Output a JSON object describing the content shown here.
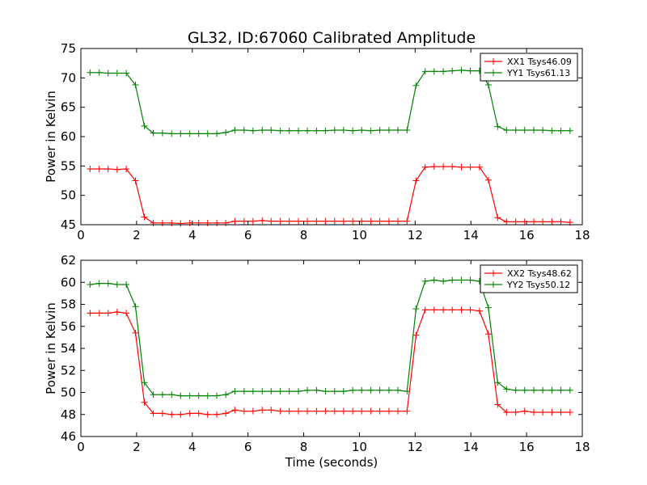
{
  "title": "GL32, ID:67060 Calibrated Amplitude",
  "colors": {
    "red": "#ff0000",
    "green": "#008000"
  },
  "chart_data": [
    {
      "type": "line",
      "xlabel": "",
      "ylabel": "Power in Kelvin",
      "xlim": [
        0,
        18
      ],
      "ylim": [
        45,
        75
      ],
      "xticks": [
        0,
        2,
        4,
        6,
        8,
        10,
        12,
        14,
        16,
        18
      ],
      "yticks": [
        45,
        50,
        55,
        60,
        65,
        70,
        75
      ],
      "grid": false,
      "legend_position": "top-right",
      "x": [
        0.33,
        0.66,
        0.98,
        1.3,
        1.63,
        1.96,
        2.28,
        2.6,
        2.93,
        3.26,
        3.58,
        3.91,
        4.23,
        4.55,
        4.88,
        5.2,
        5.53,
        5.86,
        6.18,
        6.51,
        6.83,
        7.16,
        7.48,
        7.81,
        8.13,
        8.46,
        8.78,
        9.11,
        9.43,
        9.76,
        10.08,
        10.41,
        10.73,
        11.06,
        11.38,
        11.71,
        12.03,
        12.36,
        12.68,
        13.01,
        13.33,
        13.66,
        13.98,
        14.31,
        14.63,
        14.96,
        15.28,
        15.61,
        15.93,
        16.26,
        16.58,
        16.91,
        17.23,
        17.56
      ],
      "series": [
        {
          "name": "XX1 Tsys46.09",
          "color": "#ff0000",
          "values": [
            54.5,
            54.5,
            54.5,
            54.4,
            54.5,
            52.5,
            46.3,
            45.3,
            45.3,
            45.3,
            45.2,
            45.3,
            45.3,
            45.3,
            45.3,
            45.3,
            45.6,
            45.6,
            45.6,
            45.7,
            45.6,
            45.6,
            45.6,
            45.6,
            45.6,
            45.6,
            45.6,
            45.6,
            45.6,
            45.6,
            45.6,
            45.6,
            45.6,
            45.6,
            45.6,
            45.6,
            52.5,
            54.8,
            54.9,
            54.9,
            54.9,
            54.8,
            54.8,
            54.8,
            52.6,
            46.2,
            45.5,
            45.5,
            45.5,
            45.5,
            45.5,
            45.5,
            45.5,
            45.4
          ]
        },
        {
          "name": "YY1 Tsys61.13",
          "color": "#008000",
          "values": [
            70.9,
            70.9,
            70.8,
            70.8,
            70.8,
            68.8,
            61.8,
            60.6,
            60.6,
            60.5,
            60.5,
            60.5,
            60.5,
            60.5,
            60.5,
            60.7,
            61.1,
            61.1,
            61.0,
            61.1,
            61.1,
            61.0,
            61.0,
            61.0,
            61.0,
            61.0,
            61.0,
            61.1,
            61.1,
            61.0,
            61.1,
            61.0,
            61.1,
            61.1,
            61.1,
            61.1,
            68.7,
            71.1,
            71.1,
            71.1,
            71.2,
            71.3,
            71.2,
            71.2,
            68.8,
            61.7,
            61.1,
            61.1,
            61.1,
            61.1,
            61.1,
            61.0,
            61.0,
            61.0
          ]
        }
      ]
    },
    {
      "type": "line",
      "xlabel": "Time (seconds)",
      "ylabel": "Power in Kelvin",
      "xlim": [
        0,
        18
      ],
      "ylim": [
        46,
        62
      ],
      "xticks": [
        0,
        2,
        4,
        6,
        8,
        10,
        12,
        14,
        16,
        18
      ],
      "yticks": [
        46,
        48,
        50,
        52,
        54,
        56,
        58,
        60,
        62
      ],
      "grid": false,
      "legend_position": "top-right",
      "x": [
        0.33,
        0.66,
        0.98,
        1.3,
        1.63,
        1.96,
        2.28,
        2.6,
        2.93,
        3.26,
        3.58,
        3.91,
        4.23,
        4.55,
        4.88,
        5.2,
        5.53,
        5.86,
        6.18,
        6.51,
        6.83,
        7.16,
        7.48,
        7.81,
        8.13,
        8.46,
        8.78,
        9.11,
        9.43,
        9.76,
        10.08,
        10.41,
        10.73,
        11.06,
        11.38,
        11.71,
        12.03,
        12.36,
        12.68,
        13.01,
        13.33,
        13.66,
        13.98,
        14.31,
        14.63,
        14.96,
        15.28,
        15.61,
        15.93,
        16.26,
        16.58,
        16.91,
        17.23,
        17.56
      ],
      "series": [
        {
          "name": "XX2 Tsys48.62",
          "color": "#ff0000",
          "values": [
            57.2,
            57.2,
            57.2,
            57.3,
            57.2,
            55.4,
            49.1,
            48.1,
            48.1,
            48.0,
            48.0,
            48.1,
            48.1,
            48.0,
            48.0,
            48.1,
            48.4,
            48.3,
            48.3,
            48.4,
            48.4,
            48.3,
            48.3,
            48.3,
            48.3,
            48.3,
            48.3,
            48.3,
            48.3,
            48.3,
            48.3,
            48.3,
            48.3,
            48.3,
            48.3,
            48.3,
            55.2,
            57.5,
            57.5,
            57.5,
            57.5,
            57.5,
            57.5,
            57.4,
            55.3,
            48.9,
            48.2,
            48.2,
            48.3,
            48.2,
            48.2,
            48.2,
            48.2,
            48.2
          ]
        },
        {
          "name": "YY2 Tsys50.12",
          "color": "#008000",
          "values": [
            59.8,
            59.9,
            59.9,
            59.8,
            59.8,
            57.8,
            50.9,
            49.8,
            49.8,
            49.8,
            49.7,
            49.7,
            49.7,
            49.7,
            49.7,
            49.8,
            50.1,
            50.1,
            50.1,
            50.1,
            50.1,
            50.1,
            50.1,
            50.1,
            50.2,
            50.2,
            50.1,
            50.1,
            50.1,
            50.2,
            50.2,
            50.2,
            50.2,
            50.2,
            50.2,
            50.1,
            57.6,
            60.1,
            60.2,
            60.1,
            60.2,
            60.2,
            60.2,
            60.1,
            57.7,
            50.9,
            50.3,
            50.2,
            50.2,
            50.2,
            50.2,
            50.2,
            50.2,
            50.2
          ]
        }
      ]
    }
  ]
}
